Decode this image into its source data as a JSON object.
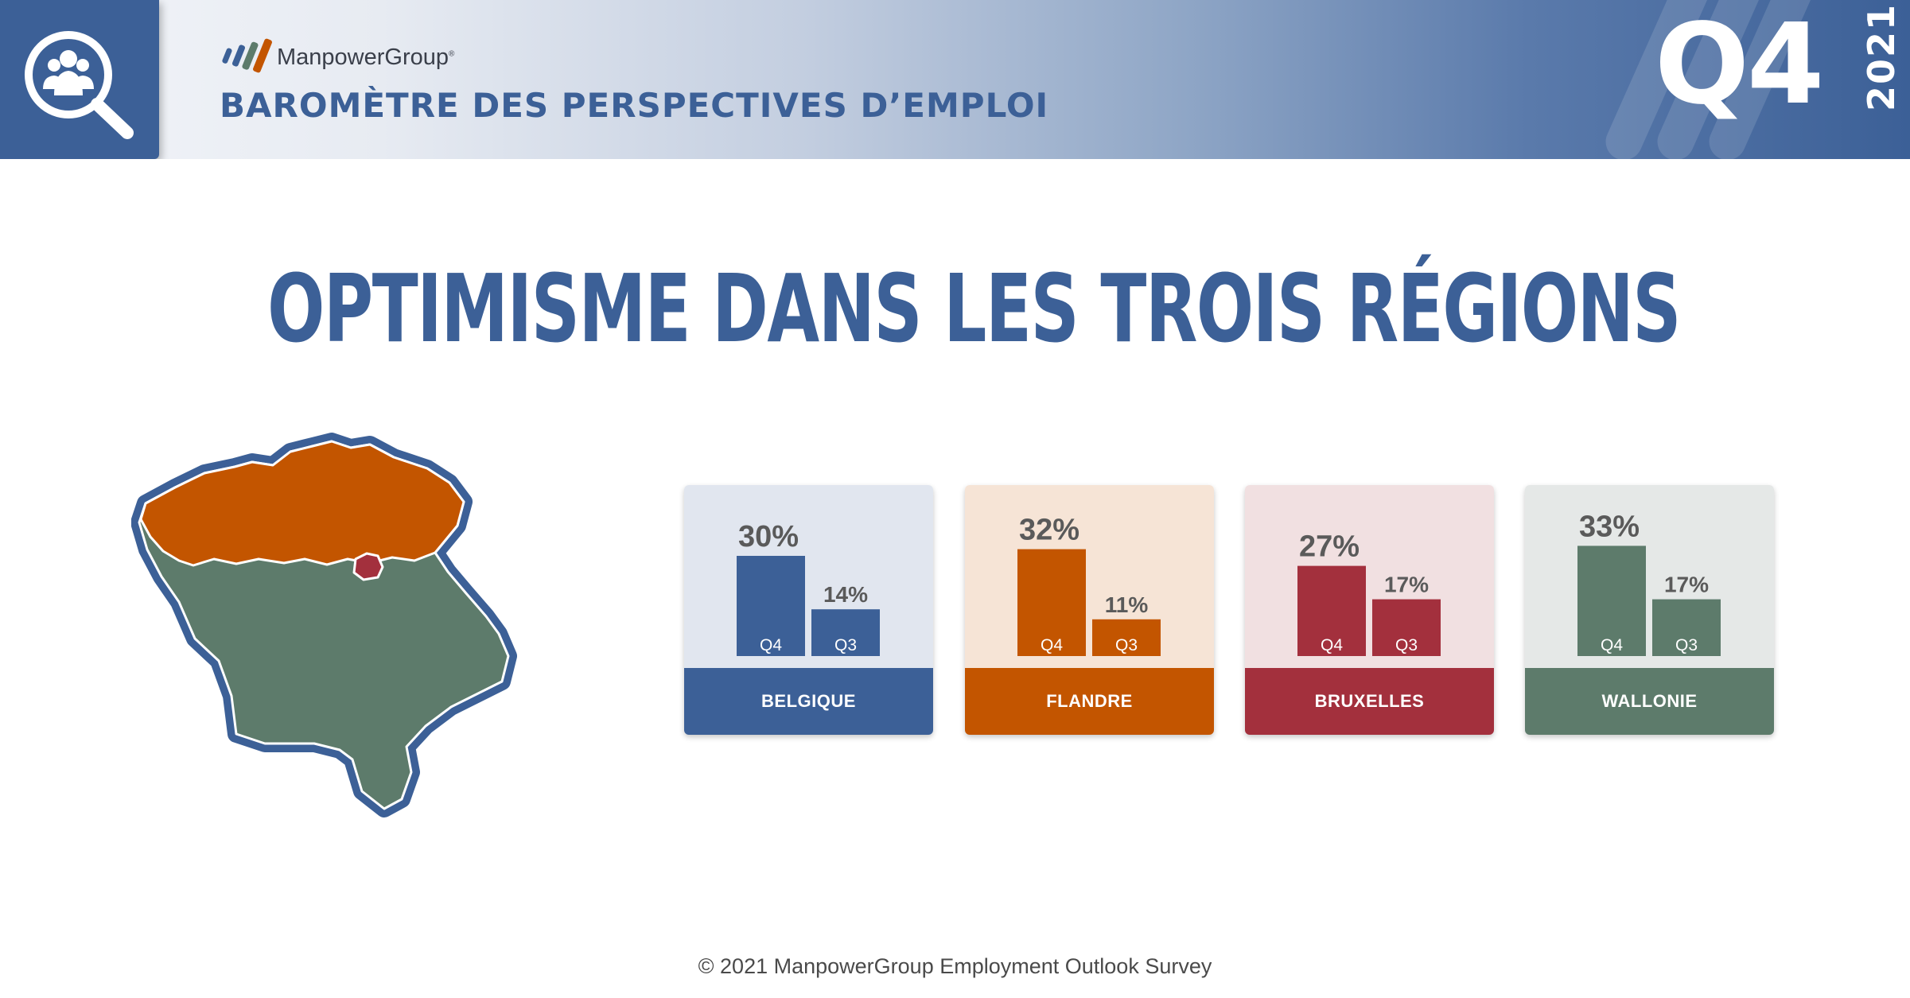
{
  "header": {
    "icon": "search-people-icon",
    "brand": "ManpowerGroup",
    "brand_mark": "®",
    "subtitle": "BAROMÈTRE DES PERSPECTIVES D’EMPLOI",
    "quarter": "Q4",
    "year": "2021"
  },
  "title": "OPTIMISME DANS LES TROIS RÉGIONS",
  "map": {
    "icon": "belgium-regions-map"
  },
  "colors": {
    "blue": "#3c6097",
    "orange": "#c35500",
    "red": "#a3303d",
    "green": "#5d7b6b",
    "value_text": "#5a5a5a"
  },
  "chart_data": {
    "type": "bar",
    "categories": [
      "Q4",
      "Q3"
    ],
    "value_format": "percent",
    "series": [
      {
        "name": "BELGIQUE",
        "values": [
          30,
          14
        ],
        "labels": [
          "30%",
          "14%"
        ],
        "color": "#3c6097",
        "background": "#e1e6ef"
      },
      {
        "name": "FLANDRE",
        "values": [
          32,
          11
        ],
        "labels": [
          "32%",
          "11%"
        ],
        "color": "#c35500",
        "background": "#f6e4d6"
      },
      {
        "name": "BRUXELLES",
        "values": [
          27,
          17
        ],
        "labels": [
          "27%",
          "17%"
        ],
        "color": "#a3303d",
        "background": "#f1e0e1"
      },
      {
        "name": "WALLONIE",
        "values": [
          33,
          17
        ],
        "labels": [
          "33%",
          "17%"
        ],
        "color": "#5d7b6b",
        "background": "#e5e8e7"
      }
    ]
  },
  "footer": "© 2021 ManpowerGroup Employment Outlook Survey"
}
